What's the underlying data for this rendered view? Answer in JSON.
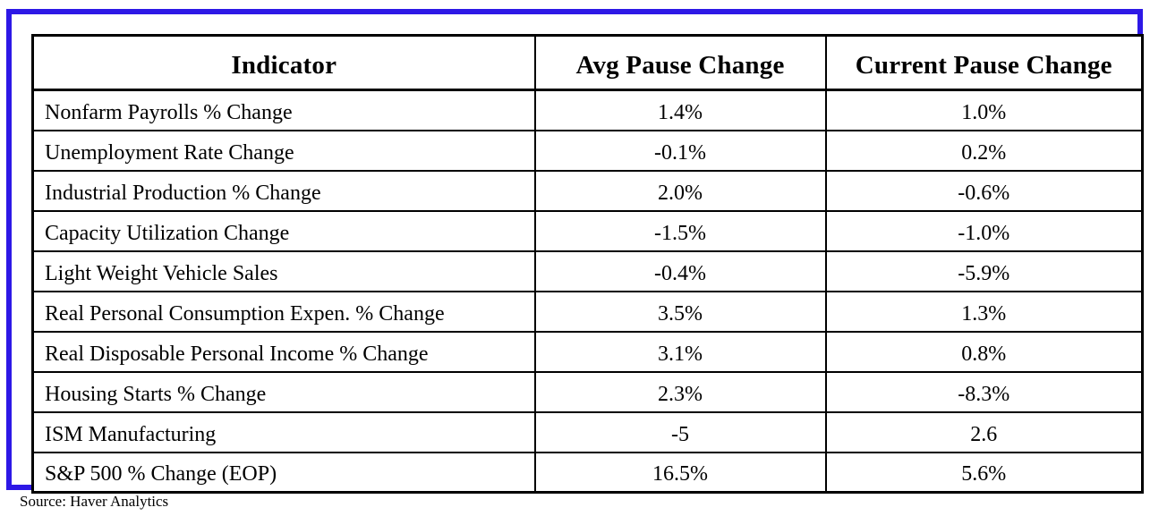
{
  "chart_data": {
    "type": "table",
    "columns": [
      "Indicator",
      "Avg Pause Change",
      "Current Pause Change"
    ],
    "rows": [
      [
        "Nonfarm Payrolls % Change",
        "1.4%",
        "1.0%"
      ],
      [
        "Unemployment Rate Change",
        "-0.1%",
        "0.2%"
      ],
      [
        "Industrial Production % Change",
        "2.0%",
        "-0.6%"
      ],
      [
        "Capacity Utilization Change",
        "-1.5%",
        "-1.0%"
      ],
      [
        "Light Weight Vehicle Sales",
        "-0.4%",
        "-5.9%"
      ],
      [
        "Real Personal Consumption Expen. % Change",
        "3.5%",
        "1.3%"
      ],
      [
        "Real Disposable Personal Income % Change",
        "3.1%",
        "0.8%"
      ],
      [
        "Housing Starts % Change",
        "2.3%",
        "-8.3%"
      ],
      [
        "ISM Manufacturing",
        "-5",
        "2.6"
      ],
      [
        "S&P 500 % Change (EOP)",
        "16.5%",
        "5.6%"
      ]
    ],
    "source": "Source: Haver Analytics",
    "layout": {
      "grid": "on",
      "header_bold": true,
      "indicator_align": "left",
      "value_align": "center"
    }
  },
  "colors": {
    "frame_border": "#2d18e6",
    "table_border": "#000000",
    "background": "#ffffff",
    "text": "#000000"
  }
}
